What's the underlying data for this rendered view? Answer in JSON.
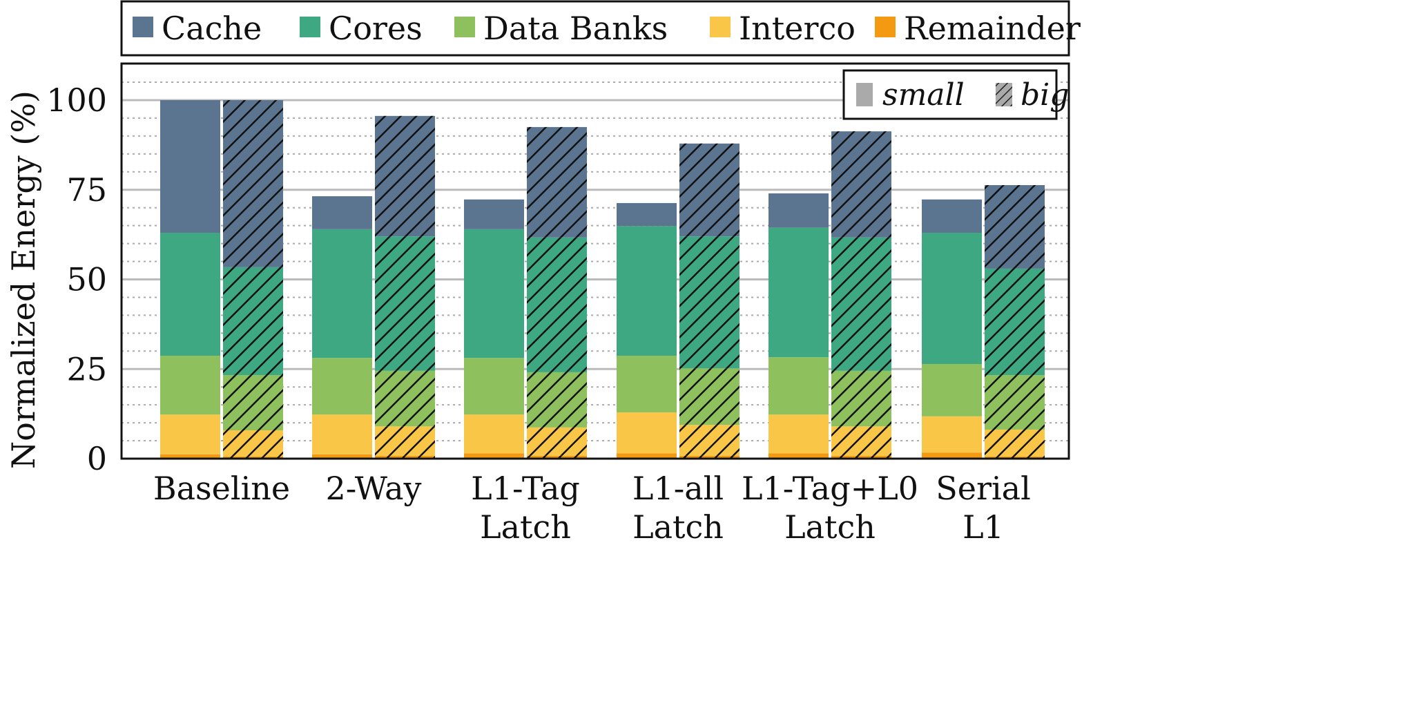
{
  "chart_data": {
    "type": "bar",
    "stacked": true,
    "ylabel": "Normalized Energy (%)",
    "ylim": [
      0,
      110
    ],
    "yticks": [
      0,
      25,
      50,
      75,
      100
    ],
    "grid": true,
    "legend_position": "top",
    "categories": [
      [
        "Baseline"
      ],
      [
        "2-Way"
      ],
      [
        "L1-Tag",
        "Latch"
      ],
      [
        "L1-all",
        "Latch"
      ],
      [
        "L1-Tag+L0",
        "Latch"
      ],
      [
        "Serial",
        "L1"
      ]
    ],
    "variants": [
      {
        "name": "small",
        "pattern": "solid"
      },
      {
        "name": "big",
        "pattern": "hatched"
      }
    ],
    "series": [
      {
        "name": "Remainder",
        "color": "#f39a12",
        "small": [
          1.2,
          1.2,
          1.5,
          1.5,
          1.5,
          1.7
        ],
        "big": [
          0.6,
          0.8,
          0.8,
          0.8,
          0.8,
          0.6
        ]
      },
      {
        "name": "Interco",
        "color": "#f9c647",
        "small": [
          11.1,
          11.1,
          10.8,
          11.4,
          10.8,
          10.1
        ],
        "big": [
          7.3,
          8.2,
          7.9,
          8.6,
          8.2,
          7.5
        ]
      },
      {
        "name": "Data Banks",
        "color": "#8fc05e",
        "small": [
          16.4,
          15.8,
          15.8,
          15.8,
          16.0,
          14.6
        ],
        "big": [
          15.4,
          15.5,
          15.4,
          15.8,
          15.5,
          15.2
        ]
      },
      {
        "name": "Cores",
        "color": "#3da882",
        "small": [
          34.3,
          35.9,
          35.9,
          36.2,
          36.1,
          36.6
        ],
        "big": [
          30.1,
          37.5,
          37.6,
          36.8,
          37.2,
          29.7
        ]
      },
      {
        "name": "Cache",
        "color": "#5b7590",
        "small": [
          37.0,
          9.2,
          8.3,
          6.4,
          9.6,
          9.3
        ],
        "big": [
          46.6,
          33.6,
          30.8,
          25.9,
          29.6,
          23.3
        ]
      }
    ],
    "legend_order": [
      "Cache",
      "Cores",
      "Data Banks",
      "Interco",
      "Remainder"
    ]
  }
}
